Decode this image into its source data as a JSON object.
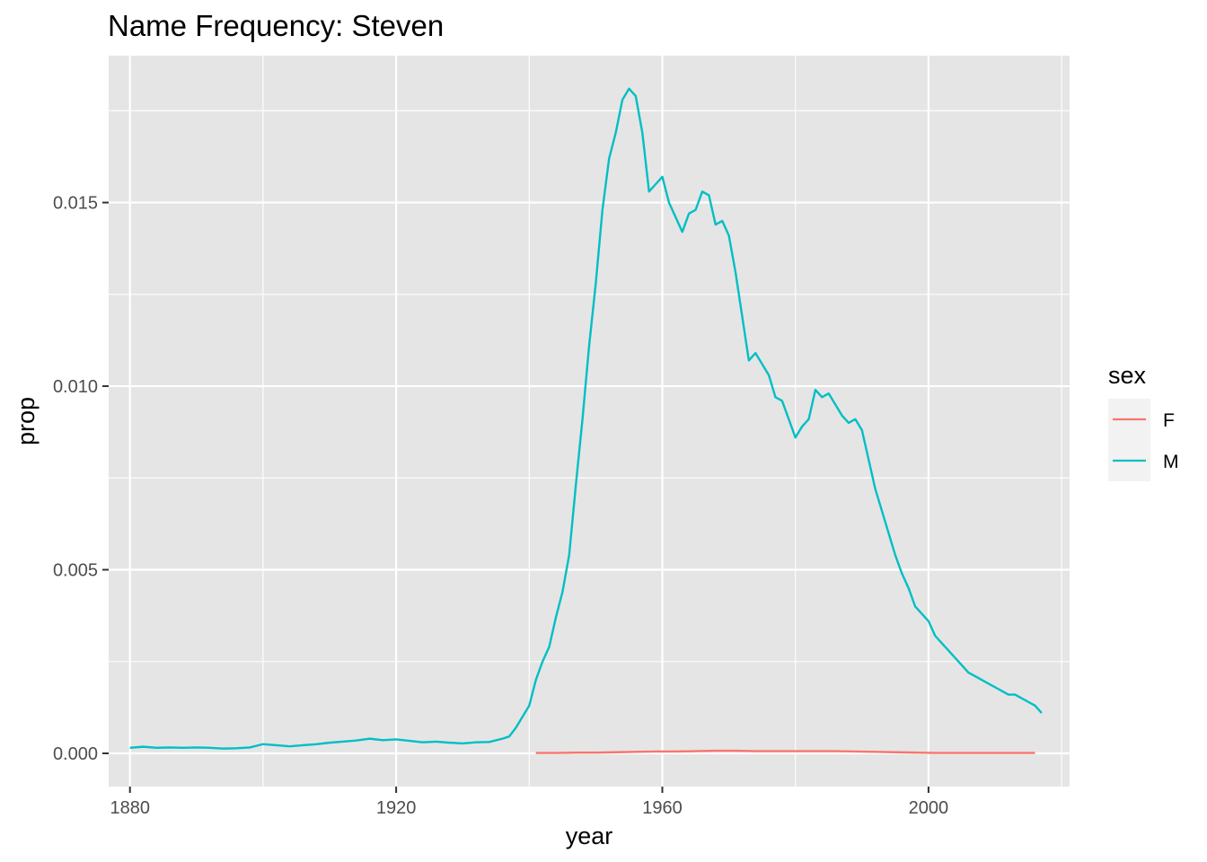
{
  "chart_data": {
    "type": "line",
    "title": "Name Frequency: Steven",
    "xlabel": "year",
    "ylabel": "prop",
    "xlim": [
      1876.8,
      2021.2
    ],
    "ylim": [
      -0.000905,
      0.019
    ],
    "x_ticks": [
      {
        "value": 1880,
        "label": "1880"
      },
      {
        "value": 1920,
        "label": "1920"
      },
      {
        "value": 1960,
        "label": "1960"
      },
      {
        "value": 2000,
        "label": "2000"
      }
    ],
    "y_ticks": [
      {
        "value": 0.0,
        "label": "0.000"
      },
      {
        "value": 0.005,
        "label": "0.005"
      },
      {
        "value": 0.01,
        "label": "0.010"
      },
      {
        "value": 0.015,
        "label": "0.015"
      }
    ],
    "x_minor": [
      1900,
      1940,
      1980,
      2020
    ],
    "y_minor": [
      0.0025,
      0.0075,
      0.0125,
      0.0175
    ],
    "grid": true,
    "background": "#e5e5e5",
    "legend": {
      "title": "sex",
      "position": "right",
      "entries": [
        {
          "label": "F",
          "color": "#f8766d"
        },
        {
          "label": "M",
          "color": "#00bfc4"
        }
      ]
    },
    "series": [
      {
        "name": "F",
        "color": "#f8766d",
        "x": [
          1941,
          1944,
          1947,
          1950,
          1953,
          1956,
          1959,
          1962,
          1965,
          1968,
          1971,
          1974,
          1977,
          1980,
          1983,
          1986,
          1989,
          1992,
          1995,
          1998,
          2001,
          2004,
          2007,
          2010,
          2013,
          2016
        ],
        "y": [
          1e-05,
          1e-05,
          2e-05,
          2e-05,
          3e-05,
          4e-05,
          5e-05,
          5e-05,
          6e-05,
          7e-05,
          7e-05,
          6e-05,
          6e-05,
          6e-05,
          6e-05,
          6e-05,
          5e-05,
          4e-05,
          3e-05,
          2e-05,
          1e-05,
          1e-05,
          1e-05,
          1e-05,
          1e-05,
          1e-05
        ]
      },
      {
        "name": "M",
        "color": "#00bfc4",
        "x": [
          1880,
          1882,
          1884,
          1886,
          1888,
          1890,
          1892,
          1894,
          1896,
          1898,
          1900,
          1902,
          1904,
          1906,
          1908,
          1910,
          1912,
          1914,
          1916,
          1918,
          1920,
          1922,
          1924,
          1926,
          1928,
          1930,
          1932,
          1934,
          1936,
          1937,
          1938,
          1939,
          1940,
          1941,
          1942,
          1943,
          1944,
          1945,
          1946,
          1947,
          1948,
          1949,
          1950,
          1951,
          1952,
          1953,
          1954,
          1955,
          1956,
          1957,
          1958,
          1959,
          1960,
          1961,
          1962,
          1963,
          1964,
          1965,
          1966,
          1967,
          1968,
          1969,
          1970,
          1971,
          1972,
          1973,
          1974,
          1975,
          1976,
          1977,
          1978,
          1979,
          1980,
          1981,
          1982,
          1983,
          1984,
          1985,
          1986,
          1987,
          1988,
          1989,
          1990,
          1991,
          1992,
          1993,
          1994,
          1995,
          1996,
          1997,
          1998,
          1999,
          2000,
          2001,
          2002,
          2003,
          2004,
          2005,
          2006,
          2007,
          2008,
          2009,
          2010,
          2011,
          2012,
          2013,
          2014,
          2015,
          2016,
          2017
        ],
        "y": [
          0.00015,
          0.00018,
          0.00015,
          0.00016,
          0.00015,
          0.00016,
          0.00015,
          0.00013,
          0.00014,
          0.00016,
          0.00025,
          0.00022,
          0.00019,
          0.00022,
          0.00025,
          0.00029,
          0.00032,
          0.00035,
          0.0004,
          0.00036,
          0.00038,
          0.00034,
          0.0003,
          0.00032,
          0.00029,
          0.00027,
          0.0003,
          0.00031,
          0.0004,
          0.00046,
          0.0007,
          0.001,
          0.0013,
          0.002,
          0.0025,
          0.0029,
          0.0037,
          0.0044,
          0.0054,
          0.0073,
          0.0091,
          0.0111,
          0.0128,
          0.0148,
          0.0162,
          0.0169,
          0.0178,
          0.0181,
          0.0179,
          0.0169,
          0.0153,
          0.0155,
          0.0157,
          0.015,
          0.0146,
          0.0142,
          0.0147,
          0.0148,
          0.0153,
          0.0152,
          0.0144,
          0.0145,
          0.0141,
          0.0131,
          0.0119,
          0.0107,
          0.0109,
          0.0106,
          0.0103,
          0.0097,
          0.0096,
          0.0091,
          0.0086,
          0.0089,
          0.0091,
          0.0099,
          0.0097,
          0.0098,
          0.0095,
          0.0092,
          0.009,
          0.0091,
          0.0088,
          0.008,
          0.0072,
          0.0066,
          0.006,
          0.0054,
          0.0049,
          0.0045,
          0.004,
          0.0038,
          0.0036,
          0.0032,
          0.003,
          0.0028,
          0.0026,
          0.0024,
          0.0022,
          0.0021,
          0.002,
          0.0019,
          0.0018,
          0.0017,
          0.0016,
          0.0016,
          0.0015,
          0.0014,
          0.0013,
          0.0011
        ]
      }
    ]
  }
}
